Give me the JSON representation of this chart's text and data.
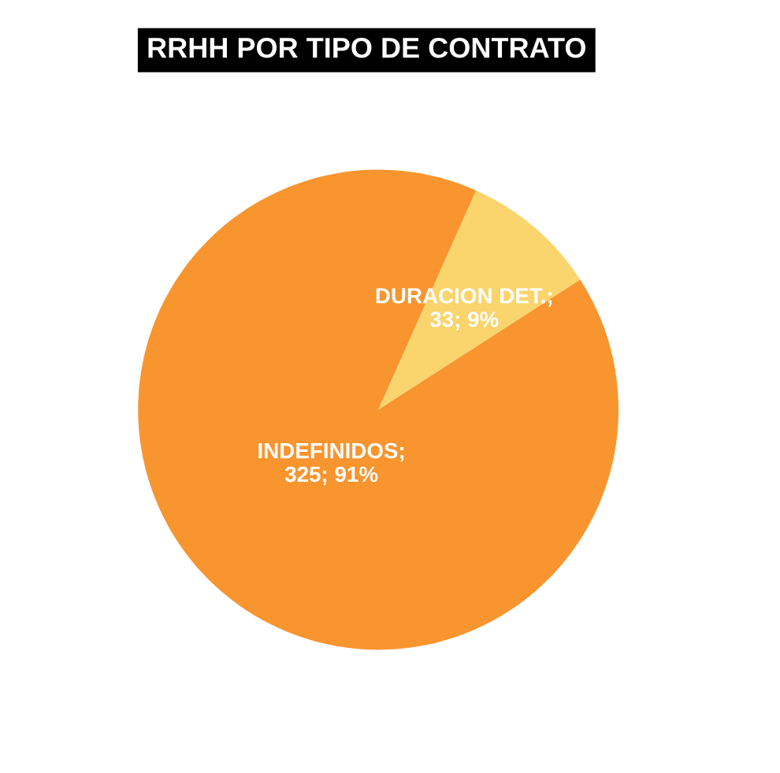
{
  "chart_data": {
    "type": "pie",
    "title": "RRHH POR TIPO DE CONTRATO",
    "categories": [
      "DURACION DET.",
      "INDEFINIDOS"
    ],
    "values": [
      33,
      325
    ],
    "colors": [
      "#fad46c",
      "#f8952f"
    ],
    "value_labels": [
      ";\n33; 9%",
      ";\n325; 91%"
    ],
    "legend": false
  }
}
